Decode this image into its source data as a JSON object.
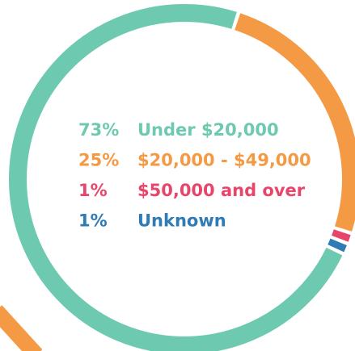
{
  "chart_data": {
    "type": "donut",
    "categories": [
      "Under $20,000",
      "$20,000 - $49,000",
      "$50,000 and over",
      "Unknown"
    ],
    "values": [
      73,
      25,
      1,
      1
    ],
    "value_labels": [
      "73%",
      "25%",
      "1%",
      "1%"
    ],
    "colors": [
      "#6dcab0",
      "#f59a44",
      "#e8456a",
      "#2e7bb5"
    ]
  }
}
